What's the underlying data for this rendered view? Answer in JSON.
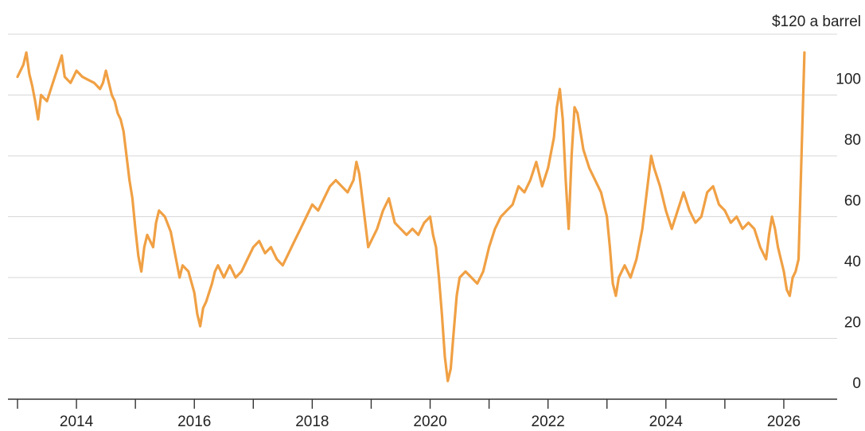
{
  "chart_data": {
    "type": "line",
    "title": "",
    "xlabel": "",
    "ylabel": "",
    "grid": true,
    "ylim": [
      0,
      120
    ],
    "xlim": [
      2013.0,
      2026.5
    ],
    "y_ticks": [
      {
        "value": 0,
        "label": "0"
      },
      {
        "value": 20,
        "label": "20"
      },
      {
        "value": 40,
        "label": "40"
      },
      {
        "value": 60,
        "label": "60"
      },
      {
        "value": 80,
        "label": "80"
      },
      {
        "value": 100,
        "label": "100"
      },
      {
        "value": 120,
        "label": "$120 a barrel"
      }
    ],
    "x_ticks_major": [
      {
        "value": 2014,
        "label": "2014"
      },
      {
        "value": 2016,
        "label": "2016"
      },
      {
        "value": 2018,
        "label": "2018"
      },
      {
        "value": 2020,
        "label": "2020"
      },
      {
        "value": 2022,
        "label": "2022"
      },
      {
        "value": 2024,
        "label": "2024"
      },
      {
        "value": 2026,
        "label": "2026"
      }
    ],
    "x_ticks_minor": [
      2013,
      2015,
      2017,
      2019,
      2021,
      2023,
      2025
    ],
    "series": [
      {
        "color": "#f0a044",
        "points": [
          [
            2013.0,
            106
          ],
          [
            2013.1,
            110
          ],
          [
            2013.15,
            114
          ],
          [
            2013.2,
            107
          ],
          [
            2013.25,
            103
          ],
          [
            2013.3,
            98
          ],
          [
            2013.35,
            92
          ],
          [
            2013.4,
            100
          ],
          [
            2013.5,
            98
          ],
          [
            2013.6,
            104
          ],
          [
            2013.7,
            110
          ],
          [
            2013.75,
            113
          ],
          [
            2013.8,
            106
          ],
          [
            2013.9,
            104
          ],
          [
            2014.0,
            108
          ],
          [
            2014.1,
            106
          ],
          [
            2014.2,
            105
          ],
          [
            2014.3,
            104
          ],
          [
            2014.4,
            102
          ],
          [
            2014.45,
            104
          ],
          [
            2014.5,
            108
          ],
          [
            2014.55,
            104
          ],
          [
            2014.6,
            100
          ],
          [
            2014.65,
            98
          ],
          [
            2014.7,
            94
          ],
          [
            2014.75,
            92
          ],
          [
            2014.8,
            88
          ],
          [
            2014.85,
            80
          ],
          [
            2014.9,
            72
          ],
          [
            2014.95,
            66
          ],
          [
            2015.0,
            56
          ],
          [
            2015.05,
            47
          ],
          [
            2015.1,
            42
          ],
          [
            2015.15,
            50
          ],
          [
            2015.2,
            54
          ],
          [
            2015.3,
            50
          ],
          [
            2015.35,
            58
          ],
          [
            2015.4,
            62
          ],
          [
            2015.5,
            60
          ],
          [
            2015.6,
            55
          ],
          [
            2015.7,
            45
          ],
          [
            2015.75,
            40
          ],
          [
            2015.8,
            44
          ],
          [
            2015.9,
            42
          ],
          [
            2016.0,
            35
          ],
          [
            2016.05,
            28
          ],
          [
            2016.1,
            24
          ],
          [
            2016.15,
            30
          ],
          [
            2016.2,
            32
          ],
          [
            2016.3,
            38
          ],
          [
            2016.35,
            42
          ],
          [
            2016.4,
            44
          ],
          [
            2016.5,
            40
          ],
          [
            2016.6,
            44
          ],
          [
            2016.7,
            40
          ],
          [
            2016.8,
            42
          ],
          [
            2016.9,
            46
          ],
          [
            2017.0,
            50
          ],
          [
            2017.1,
            52
          ],
          [
            2017.2,
            48
          ],
          [
            2017.3,
            50
          ],
          [
            2017.4,
            46
          ],
          [
            2017.5,
            44
          ],
          [
            2017.6,
            48
          ],
          [
            2017.7,
            52
          ],
          [
            2017.8,
            56
          ],
          [
            2017.9,
            60
          ],
          [
            2018.0,
            64
          ],
          [
            2018.1,
            62
          ],
          [
            2018.2,
            66
          ],
          [
            2018.3,
            70
          ],
          [
            2018.4,
            72
          ],
          [
            2018.5,
            70
          ],
          [
            2018.6,
            68
          ],
          [
            2018.7,
            72
          ],
          [
            2018.75,
            78
          ],
          [
            2018.8,
            74
          ],
          [
            2018.85,
            66
          ],
          [
            2018.9,
            58
          ],
          [
            2018.95,
            50
          ],
          [
            2019.0,
            52
          ],
          [
            2019.1,
            56
          ],
          [
            2019.2,
            62
          ],
          [
            2019.3,
            66
          ],
          [
            2019.4,
            58
          ],
          [
            2019.5,
            56
          ],
          [
            2019.6,
            54
          ],
          [
            2019.7,
            56
          ],
          [
            2019.8,
            54
          ],
          [
            2019.9,
            58
          ],
          [
            2020.0,
            60
          ],
          [
            2020.05,
            54
          ],
          [
            2020.1,
            50
          ],
          [
            2020.15,
            40
          ],
          [
            2020.2,
            28
          ],
          [
            2020.25,
            14
          ],
          [
            2020.3,
            6
          ],
          [
            2020.35,
            10
          ],
          [
            2020.4,
            22
          ],
          [
            2020.45,
            34
          ],
          [
            2020.5,
            40
          ],
          [
            2020.6,
            42
          ],
          [
            2020.7,
            40
          ],
          [
            2020.8,
            38
          ],
          [
            2020.9,
            42
          ],
          [
            2021.0,
            50
          ],
          [
            2021.1,
            56
          ],
          [
            2021.2,
            60
          ],
          [
            2021.3,
            62
          ],
          [
            2021.4,
            64
          ],
          [
            2021.5,
            70
          ],
          [
            2021.6,
            68
          ],
          [
            2021.7,
            72
          ],
          [
            2021.8,
            78
          ],
          [
            2021.9,
            70
          ],
          [
            2022.0,
            76
          ],
          [
            2022.1,
            86
          ],
          [
            2022.15,
            96
          ],
          [
            2022.2,
            102
          ],
          [
            2022.25,
            92
          ],
          [
            2022.3,
            72
          ],
          [
            2022.35,
            56
          ],
          [
            2022.4,
            80
          ],
          [
            2022.45,
            96
          ],
          [
            2022.5,
            94
          ],
          [
            2022.6,
            82
          ],
          [
            2022.7,
            76
          ],
          [
            2022.8,
            72
          ],
          [
            2022.9,
            68
          ],
          [
            2023.0,
            60
          ],
          [
            2023.05,
            50
          ],
          [
            2023.1,
            38
          ],
          [
            2023.15,
            34
          ],
          [
            2023.2,
            40
          ],
          [
            2023.3,
            44
          ],
          [
            2023.4,
            40
          ],
          [
            2023.5,
            46
          ],
          [
            2023.6,
            56
          ],
          [
            2023.7,
            72
          ],
          [
            2023.75,
            80
          ],
          [
            2023.8,
            76
          ],
          [
            2023.9,
            70
          ],
          [
            2024.0,
            62
          ],
          [
            2024.1,
            56
          ],
          [
            2024.2,
            62
          ],
          [
            2024.3,
            68
          ],
          [
            2024.4,
            62
          ],
          [
            2024.5,
            58
          ],
          [
            2024.6,
            60
          ],
          [
            2024.7,
            68
          ],
          [
            2024.8,
            70
          ],
          [
            2024.9,
            64
          ],
          [
            2025.0,
            62
          ],
          [
            2025.1,
            58
          ],
          [
            2025.2,
            60
          ],
          [
            2025.3,
            56
          ],
          [
            2025.4,
            58
          ],
          [
            2025.5,
            56
          ],
          [
            2025.6,
            50
          ],
          [
            2025.7,
            46
          ],
          [
            2025.75,
            54
          ],
          [
            2025.8,
            60
          ],
          [
            2025.85,
            56
          ],
          [
            2025.9,
            50
          ],
          [
            2026.0,
            42
          ],
          [
            2026.05,
            36
          ],
          [
            2026.1,
            34
          ],
          [
            2026.15,
            40
          ],
          [
            2026.2,
            42
          ],
          [
            2026.25,
            46
          ],
          [
            2026.3,
            80
          ],
          [
            2026.35,
            114
          ]
        ]
      }
    ]
  }
}
